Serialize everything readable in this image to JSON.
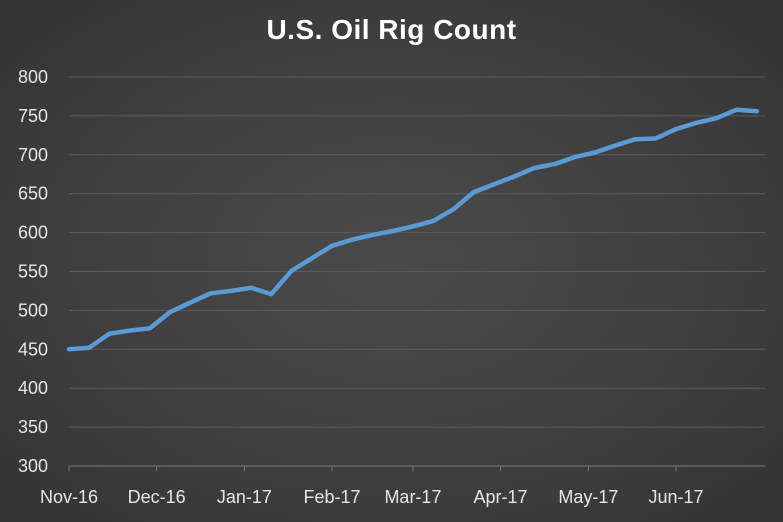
{
  "chart_data": {
    "type": "line",
    "title": "U.S. Oil Rig Count",
    "xlabel": "",
    "ylabel": "",
    "ylim": [
      300,
      800
    ],
    "yticks": [
      300,
      350,
      400,
      450,
      500,
      550,
      600,
      650,
      700,
      750,
      800
    ],
    "grid": true,
    "legend": "none",
    "x_tick_labels": [
      "Nov-16",
      "Dec-16",
      "Jan-17",
      "Feb-17",
      "Mar-17",
      "Apr-17",
      "May-17",
      "Jun-17"
    ],
    "x_tick_positions": [
      0,
      4.33,
      8.67,
      13.0,
      17.0,
      21.33,
      25.67,
      30.0
    ],
    "series": [
      {
        "name": "",
        "color": "#5b9bd5",
        "x": [
          0,
          1,
          2,
          3,
          4,
          5,
          6,
          7,
          8,
          9,
          10,
          11,
          12,
          13,
          14,
          15,
          16,
          17,
          18,
          19,
          20,
          21,
          22,
          23,
          24,
          25,
          26,
          27,
          28,
          29,
          30,
          31,
          32,
          33,
          34
        ],
        "values": [
          450,
          452,
          470,
          474,
          477,
          498,
          510,
          522,
          525,
          529,
          521,
          551,
          567,
          583,
          591,
          597,
          602,
          608,
          615,
          630,
          652,
          662,
          672,
          683,
          688,
          697,
          703,
          712,
          720,
          721,
          733,
          741,
          747,
          758,
          756
        ]
      }
    ]
  }
}
